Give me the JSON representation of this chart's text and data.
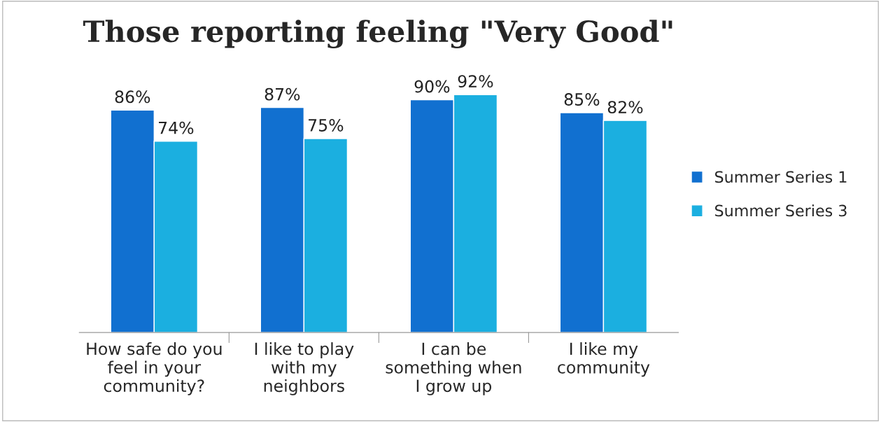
{
  "chart_data": {
    "type": "bar",
    "title": "Those reporting feeling \"Very Good\"",
    "categories": [
      "How safe do you\nfeel in your\ncommunity?",
      "I like to play\nwith my\nneighbors",
      "I can be\nsomething when\nI grow up",
      "I like my\ncommunity"
    ],
    "series": [
      {
        "name": "Summer Series 1",
        "color": "#1170d0",
        "values": [
          86,
          87,
          90,
          85
        ],
        "value_labels": [
          "86%",
          "87%",
          "90%",
          "85%"
        ]
      },
      {
        "name": "Summer Series 3",
        "color": "#1bafe0",
        "values": [
          74,
          75,
          92,
          82
        ],
        "value_labels": [
          "74%",
          "75%",
          "92%",
          "82%"
        ]
      }
    ],
    "tick_labels": "x",
    "legend": "right"
  }
}
